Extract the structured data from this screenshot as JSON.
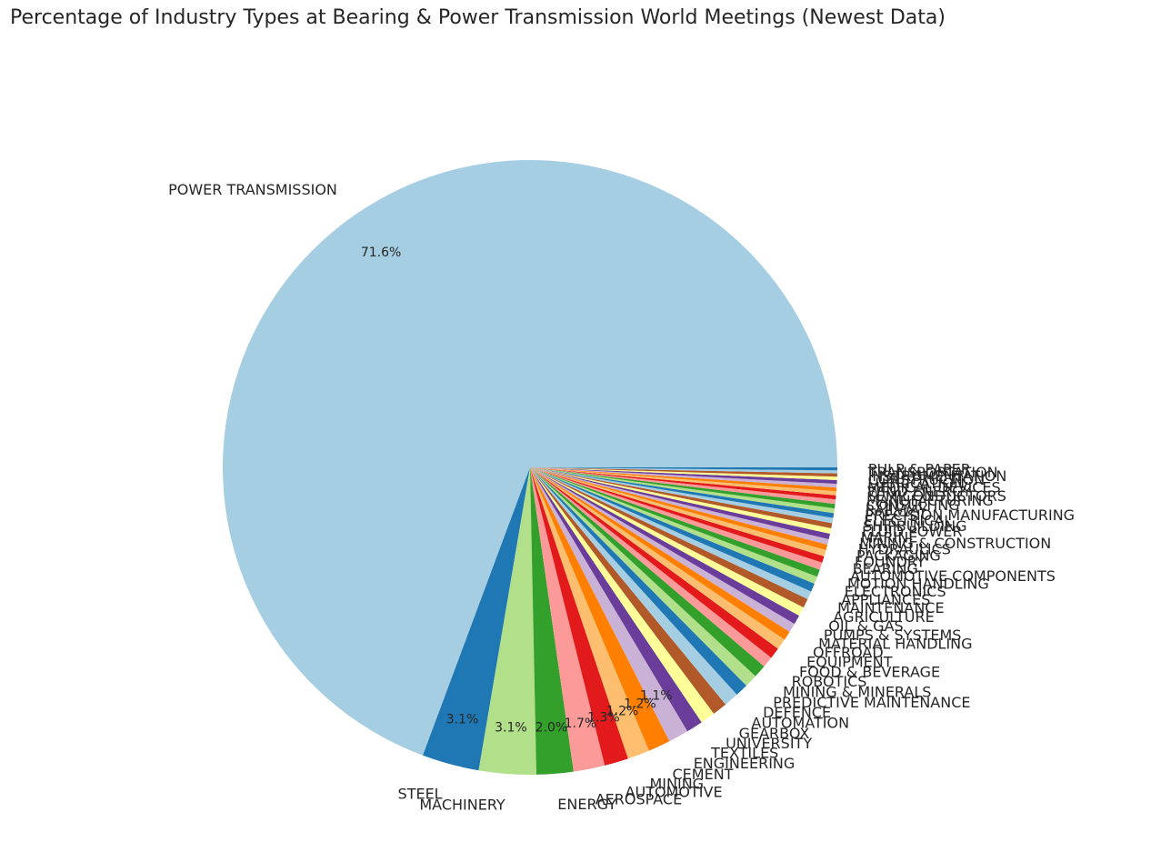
{
  "chart_data": {
    "type": "pie",
    "title": "Percentage of Industry Types at Bearing & Power Transmission World Meetings (Newest Data)",
    "slices": [
      {
        "label": "POWER TRANSMISSION",
        "value": 71.6,
        "pct_label": "71.6%"
      },
      {
        "label": "STEEL",
        "value": 3.1,
        "pct_label": "3.1%"
      },
      {
        "label": "MACHINERY",
        "value": 3.1,
        "pct_label": "3.1%"
      },
      {
        "label": "ENERGY",
        "value": 2.0,
        "pct_label": "2.0%"
      },
      {
        "label": "AEROSPACE",
        "value": 1.7,
        "pct_label": "1.7%"
      },
      {
        "label": "AUTOMOTIVE",
        "value": 1.3,
        "pct_label": "1.3%"
      },
      {
        "label": "MINING",
        "value": 1.2,
        "pct_label": "1.2%"
      },
      {
        "label": "CEMENT",
        "value": 1.2,
        "pct_label": "1.2%"
      },
      {
        "label": "ENGINEERING",
        "value": 1.1,
        "pct_label": "1.1%"
      },
      {
        "label": "TEXTILES",
        "value": 0.9
      },
      {
        "label": "UNIVERSITY",
        "value": 0.8
      },
      {
        "label": "GEARBOX",
        "value": 0.8
      },
      {
        "label": "AUTOMATION",
        "value": 0.8
      },
      {
        "label": "DEFENCE",
        "value": 0.7
      },
      {
        "label": "PREDICTIVE MAINTENANCE",
        "value": 0.7
      },
      {
        "label": "MINING & MINERALS",
        "value": 0.7
      },
      {
        "label": "ROBOTICS",
        "value": 0.6
      },
      {
        "label": "FOOD & BEVERAGE",
        "value": 0.6
      },
      {
        "label": "EQUIPMENT",
        "value": 0.6
      },
      {
        "label": "OFFROAD",
        "value": 0.5
      },
      {
        "label": "MATERIAL HANDLING",
        "value": 0.5
      },
      {
        "label": "PUMPS & SYSTEMS",
        "value": 0.5
      },
      {
        "label": "OIL & GAS",
        "value": 0.5
      },
      {
        "label": "AGRICULTURE",
        "value": 0.5
      },
      {
        "label": "MAINTENANCE",
        "value": 0.45
      },
      {
        "label": "APPLIANCES",
        "value": 0.45
      },
      {
        "label": "ELECTRONICS",
        "value": 0.4
      },
      {
        "label": "MOTION HANDLING",
        "value": 0.4
      },
      {
        "label": "AUTOMOTIVE COMPONENTS",
        "value": 0.4
      },
      {
        "label": "BEARING",
        "value": 0.35
      },
      {
        "label": "FOUNDRY",
        "value": 0.35
      },
      {
        "label": "PACKAGING",
        "value": 0.3
      },
      {
        "label": "HYDRAULICS",
        "value": 0.3
      },
      {
        "label": "MINING & CONSTRUCTION",
        "value": 0.3
      },
      {
        "label": "MARINE",
        "value": 0.3
      },
      {
        "label": "FLUID POWER",
        "value": 0.28
      },
      {
        "label": "SHIPBUILDING",
        "value": 0.28
      },
      {
        "label": "ELECTRICAL",
        "value": 0.26
      },
      {
        "label": "PRECISION MANUFACTURING",
        "value": 0.26
      },
      {
        "label": "RAILWAY",
        "value": 0.24
      },
      {
        "label": "CONSULTING",
        "value": 0.24
      },
      {
        "label": "MANUFACTURING",
        "value": 0.22
      },
      {
        "label": "SEMICONDUCTORS",
        "value": 0.22
      },
      {
        "label": "WIND ENERGY",
        "value": 0.2
      },
      {
        "label": "MEDICAL DEVICES",
        "value": 0.2
      },
      {
        "label": "LUBRICATION",
        "value": 0.2
      },
      {
        "label": "CONSTRUCTION",
        "value": 0.18
      },
      {
        "label": "INSTRUMENTATION",
        "value": 0.18
      },
      {
        "label": "TRANSPORTATION",
        "value": 0.16
      },
      {
        "label": "PULP & PAPER",
        "value": 0.16
      }
    ],
    "colors": [
      "#a6cee3",
      "#1f78b4",
      "#b2df8a",
      "#33a02c",
      "#fb9a99",
      "#e31a1c",
      "#fdbf6f",
      "#ff7f00",
      "#cab2d6",
      "#6a3d9a",
      "#ffff99",
      "#b15928"
    ],
    "start_angle_deg": 0,
    "direction": "counterclockwise",
    "legend": "none"
  }
}
